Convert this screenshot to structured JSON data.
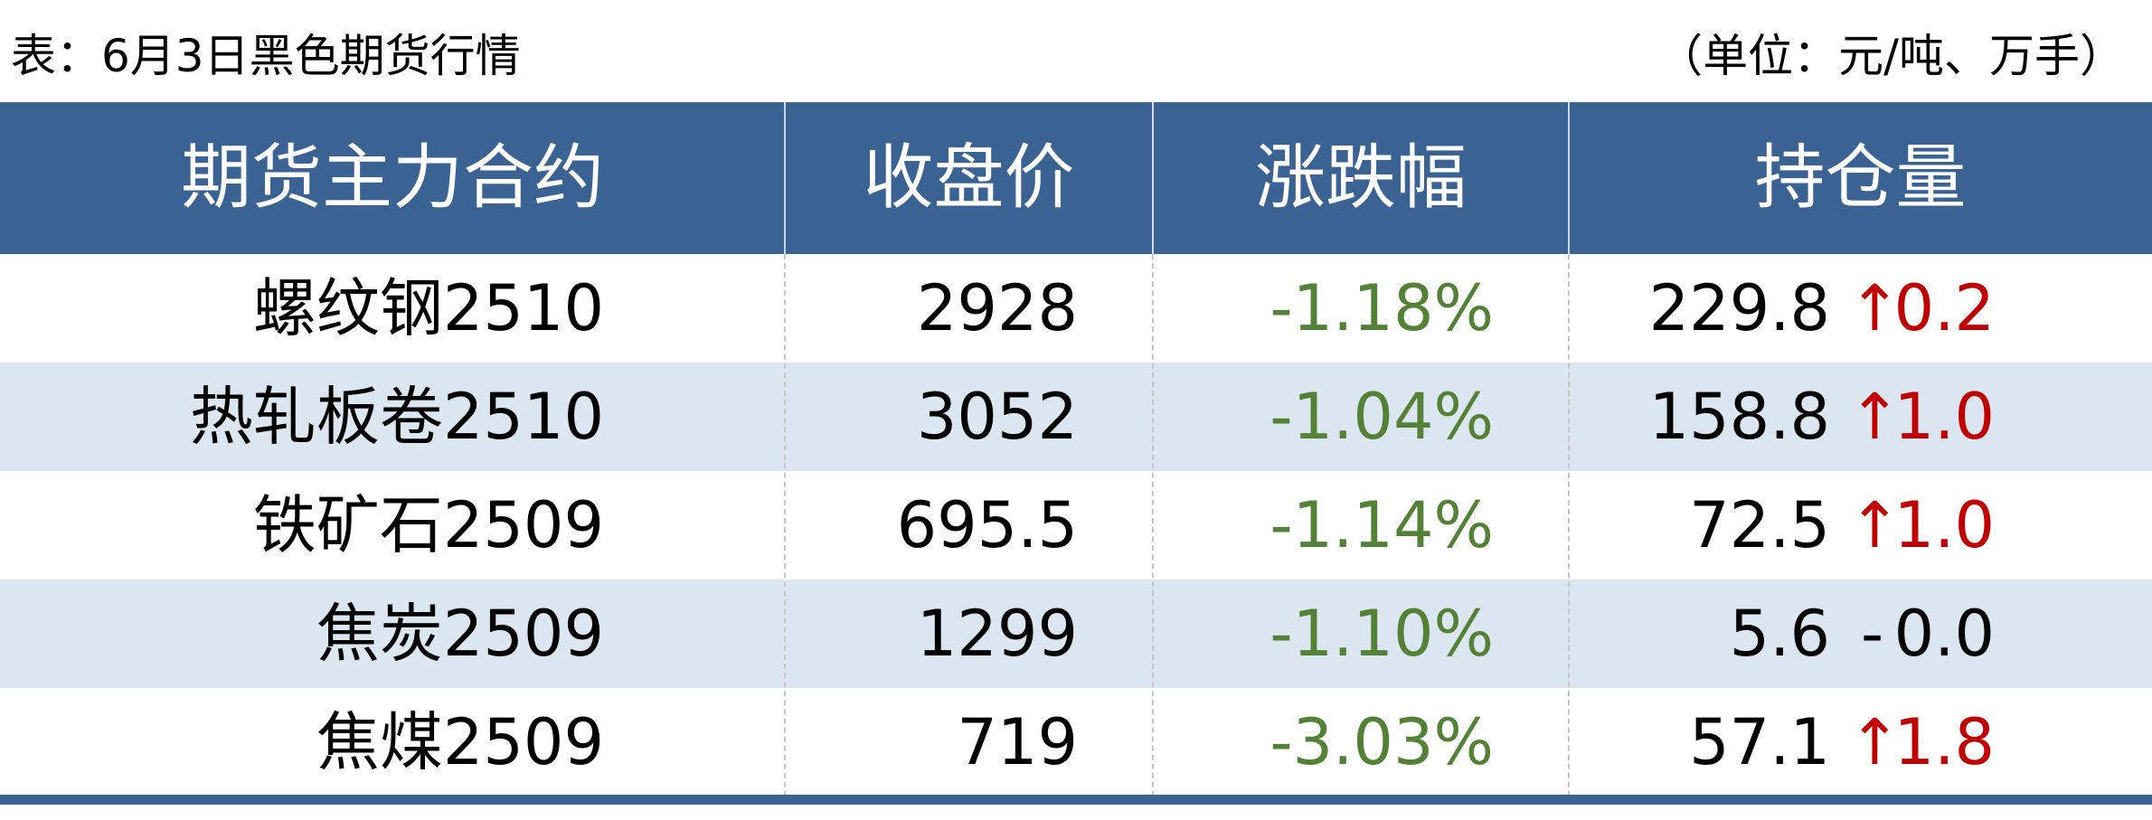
{
  "header": {
    "title": "表：6月3日黑色期货行情",
    "unit": "（单位：元/吨、万手）"
  },
  "table": {
    "columns": [
      "期货主力合约",
      "收盘价",
      "涨跌幅",
      "持仓量"
    ],
    "rows": [
      [
        "螺纹钢2510",
        "2928",
        "-1.18%",
        "229.8",
        "↑",
        "0.2"
      ],
      [
        "热轧板卷2510",
        "3052",
        "-1.04%",
        "158.8",
        "↑",
        "1.0"
      ],
      [
        "铁矿石2509",
        "695.5",
        "-1.14%",
        "72.5",
        "↑",
        "1.0"
      ],
      [
        "焦炭2509",
        "1299",
        "-1.10%",
        "5.6",
        "-",
        "0.0"
      ],
      [
        "焦煤2509",
        "719",
        "-3.03%",
        "57.1",
        "↑",
        "1.8"
      ]
    ]
  }
}
